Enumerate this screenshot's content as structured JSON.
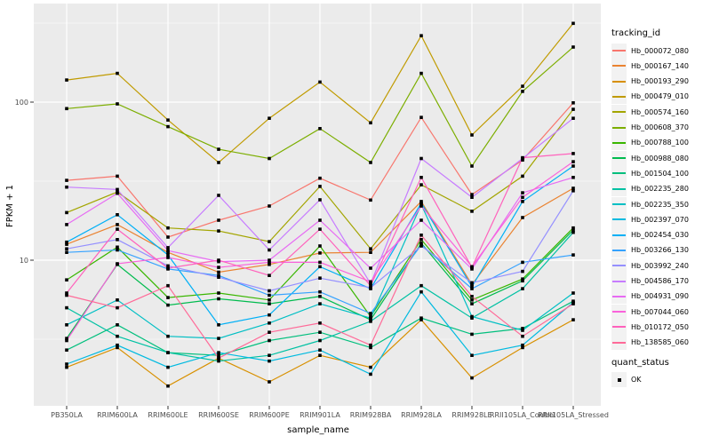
{
  "figure": {
    "background": "#FFFFFF",
    "panel_bg": "#EBEBEB",
    "grid_color": "#FFFFFF",
    "tick_color": "#333333",
    "tick_label_color": "#4D4D4D"
  },
  "chart_data": {
    "type": "line",
    "title": "",
    "xlabel": "sample_name",
    "ylabel": "FPKM + 1",
    "y_scale": "log10",
    "ylim": [
      1.2,
      400
    ],
    "y_major_ticks": [
      {
        "label": "10",
        "value": 10
      },
      {
        "label": "100",
        "value": 100
      }
    ],
    "y_minor_ticks": [
      3.1623,
      31.623,
      316.23
    ],
    "grid": true,
    "legend_position": "right",
    "point_marker": "black-square",
    "categories": [
      "PB350LA",
      "RRIM600LA",
      "RRIM600LE",
      "RRIM600SE",
      "RRIM600PE",
      "RRIM901LA",
      "RRIM928BA",
      "RRIM928LA",
      "RRIM928LE",
      "RRII105LA_Control",
      "RRII105LA_Stressed"
    ],
    "series": [
      {
        "name": "Hb_000072_080",
        "color": "#F8766D",
        "values": [
          32,
          34,
          14,
          17.9,
          22,
          33,
          24,
          80,
          26,
          43,
          99
        ]
      },
      {
        "name": "Hb_000167_140",
        "color": "#EA8331",
        "values": [
          12.6,
          16.8,
          11.2,
          8.4,
          9.4,
          11.1,
          11.2,
          23.5,
          7,
          18.6,
          28.5
        ]
      },
      {
        "name": "Hb_000193_290",
        "color": "#D89000",
        "values": [
          2.1,
          2.8,
          1.6,
          2.4,
          1.7,
          2.5,
          2.1,
          4.2,
          1.8,
          2.8,
          4.2
        ]
      },
      {
        "name": "Hb_000479_010",
        "color": "#C09B00",
        "values": [
          138,
          152,
          77,
          41.5,
          79,
          134,
          74,
          263,
          62,
          126,
          315
        ]
      },
      {
        "name": "Hb_000574_160",
        "color": "#A3A500",
        "values": [
          20,
          27,
          16,
          15.3,
          13.1,
          29.3,
          11.8,
          30,
          20.4,
          34,
          90
        ]
      },
      {
        "name": "Hb_000608_370",
        "color": "#7CAE00",
        "values": [
          91,
          97.5,
          70,
          50.3,
          44,
          68,
          41.5,
          152,
          39.4,
          117,
          223
        ]
      },
      {
        "name": "Hb_000788_100",
        "color": "#39B600",
        "values": [
          7.5,
          12.1,
          5.8,
          6.2,
          5.6,
          12.3,
          4.4,
          13.5,
          5.6,
          7.6,
          16
        ]
      },
      {
        "name": "Hb_000988_080",
        "color": "#00BB4E",
        "values": [
          3.2,
          9.4,
          5.2,
          5.7,
          5.3,
          5.9,
          4.2,
          12.8,
          5.3,
          7.4,
          15.5
        ]
      },
      {
        "name": "Hb_001504_100",
        "color": "#00BF7D",
        "values": [
          2.7,
          3.9,
          2.6,
          2.5,
          3.1,
          3.5,
          2.8,
          4.3,
          3.4,
          3.7,
          5.5
        ]
      },
      {
        "name": "Hb_002235_280",
        "color": "#00C1A3",
        "values": [
          5,
          3.3,
          2.6,
          2.3,
          2.5,
          3.1,
          4.1,
          6.9,
          4.3,
          6.6,
          15
        ]
      },
      {
        "name": "Hb_002235_350",
        "color": "#00BFC4",
        "values": [
          3.9,
          5.6,
          3.3,
          3.2,
          4,
          5.3,
          4.3,
          22.5,
          4.4,
          3.6,
          6.2
        ]
      },
      {
        "name": "Hb_002397_070",
        "color": "#00BAE0",
        "values": [
          2.2,
          2.9,
          2.1,
          2.6,
          2.3,
          2.7,
          1.9,
          6.3,
          2.5,
          2.9,
          5.4
        ]
      },
      {
        "name": "Hb_002454_030",
        "color": "#00B0F6",
        "values": [
          13,
          19.4,
          10.8,
          3.9,
          4.5,
          9.1,
          6.6,
          23,
          6.8,
          23.5,
          39.4
        ]
      },
      {
        "name": "Hb_003266_130",
        "color": "#35A2FF",
        "values": [
          11.2,
          11.6,
          8.8,
          8,
          6,
          6.3,
          4.6,
          12.5,
          6.6,
          9.7,
          10.8
        ]
      },
      {
        "name": "Hb_003992_240",
        "color": "#9590FF",
        "values": [
          11.8,
          13.5,
          9.2,
          7.8,
          6.4,
          7.7,
          6.7,
          12.3,
          7.2,
          8.5,
          27.5
        ]
      },
      {
        "name": "Hb_004586_170",
        "color": "#C77CFF",
        "values": [
          29,
          28,
          12,
          25.7,
          11.6,
          24.1,
          7.1,
          44,
          25,
          44,
          79
        ]
      },
      {
        "name": "Hb_004931_090",
        "color": "#E76BF3",
        "values": [
          16.8,
          26.5,
          11.5,
          9.8,
          10,
          17.9,
          8.9,
          17.9,
          8.8,
          26.7,
          33.4
        ]
      },
      {
        "name": "Hb_007044_060",
        "color": "#FA62DB",
        "values": [
          3.1,
          9.5,
          10.4,
          9,
          9.7,
          9.7,
          7.3,
          22,
          9.1,
          25,
          42
        ]
      },
      {
        "name": "Hb_010172_050",
        "color": "#FF62BC",
        "values": [
          6.2,
          15.7,
          8.9,
          10,
          8,
          15.7,
          6.9,
          33.4,
          9,
          44.5,
          47.3
        ]
      },
      {
        "name": "Hb_138585_060",
        "color": "#FF6A98",
        "values": [
          6,
          5,
          6.9,
          2.4,
          3.5,
          4,
          2.9,
          14.4,
          5.9,
          3.3,
          5.3
        ]
      }
    ]
  },
  "legends": {
    "tracking": {
      "title": "tracking_id"
    },
    "quant": {
      "title": "quant_status",
      "entries": [
        {
          "label": "OK",
          "marker": "black-square"
        }
      ]
    }
  }
}
